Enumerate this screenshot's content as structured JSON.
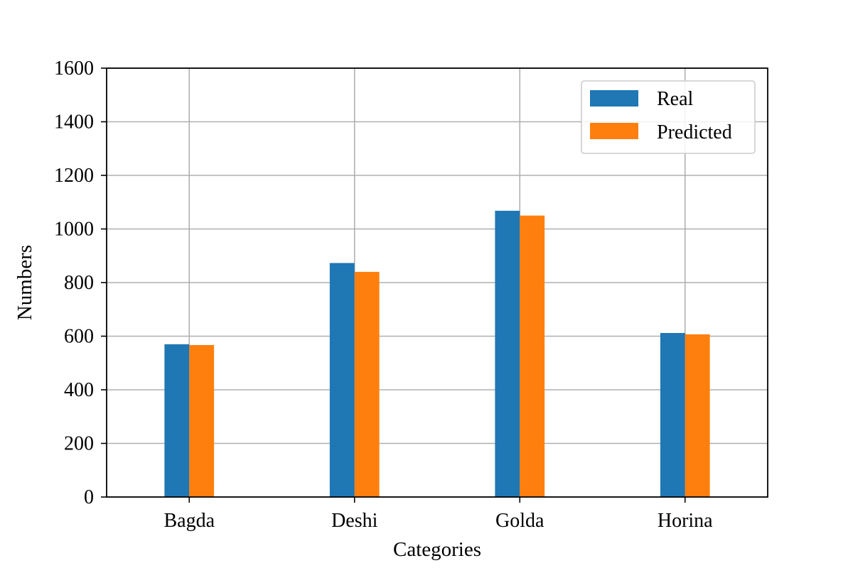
{
  "chart_data": {
    "type": "bar",
    "title": "",
    "xlabel": "Categories",
    "ylabel": "Numbers",
    "categories": [
      "Bagda",
      "Deshi",
      "Golda",
      "Horina"
    ],
    "ylim": [
      0,
      1600
    ],
    "yticks": [
      0,
      200,
      400,
      600,
      800,
      1000,
      1200,
      1400,
      1600
    ],
    "grid": true,
    "legend_position": "top-right",
    "series": [
      {
        "name": "Real",
        "color": "#1f77b4",
        "values": [
          570,
          873,
          1068,
          612
        ]
      },
      {
        "name": "Predicted",
        "color": "#ff7f0e",
        "values": [
          567,
          840,
          1050,
          607
        ]
      }
    ]
  }
}
